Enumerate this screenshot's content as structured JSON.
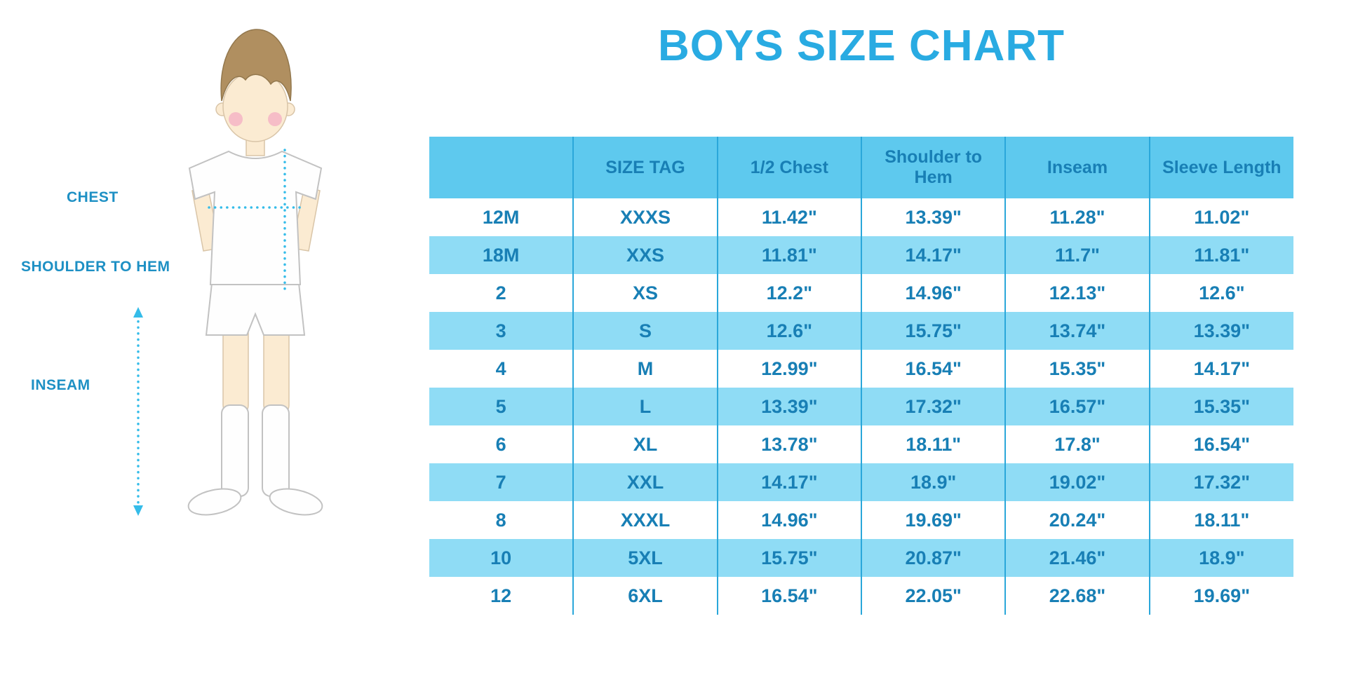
{
  "title": "BOYS SIZE CHART",
  "colors": {
    "title": "#29ABE2",
    "header_bg": "#5EC9EE",
    "row_alt_bg": "#8FDCF5",
    "table_text": "#187FB5",
    "line": "#2AA7DA",
    "label_text": "#1E90C4",
    "dotted_line": "#35BCE9",
    "skin": "#FBEBD2",
    "hair": "#B08F60",
    "blush": "#F5B5C5"
  },
  "diagram": {
    "labels": {
      "chest": "CHEST",
      "shoulder_to_hem": "SHOULDER TO HEM",
      "inseam": "INSEAM"
    }
  },
  "table": {
    "columns": [
      "",
      "SIZE TAG",
      "1/2 Chest",
      "Shoulder to Hem",
      "Inseam",
      "Sleeve Length"
    ],
    "rows": [
      [
        "12M",
        "XXXS",
        "11.42\"",
        "13.39\"",
        "11.28\"",
        "11.02\""
      ],
      [
        "18M",
        "XXS",
        "11.81\"",
        "14.17\"",
        "11.7\"",
        "11.81\""
      ],
      [
        "2",
        "XS",
        "12.2\"",
        "14.96\"",
        "12.13\"",
        "12.6\""
      ],
      [
        "3",
        "S",
        "12.6\"",
        "15.75\"",
        "13.74\"",
        "13.39\""
      ],
      [
        "4",
        "M",
        "12.99\"",
        "16.54\"",
        "15.35\"",
        "14.17\""
      ],
      [
        "5",
        "L",
        "13.39\"",
        "17.32\"",
        "16.57\"",
        "15.35\""
      ],
      [
        "6",
        "XL",
        "13.78\"",
        "18.11\"",
        "17.8\"",
        "16.54\""
      ],
      [
        "7",
        "XXL",
        "14.17\"",
        "18.9\"",
        "19.02\"",
        "17.32\""
      ],
      [
        "8",
        "XXXL",
        "14.96\"",
        "19.69\"",
        "20.24\"",
        "18.11\""
      ],
      [
        "10",
        "5XL",
        "15.75\"",
        "20.87\"",
        "21.46\"",
        "18.9\""
      ],
      [
        "12",
        "6XL",
        "16.54\"",
        "22.05\"",
        "22.68\"",
        "19.69\""
      ]
    ]
  }
}
